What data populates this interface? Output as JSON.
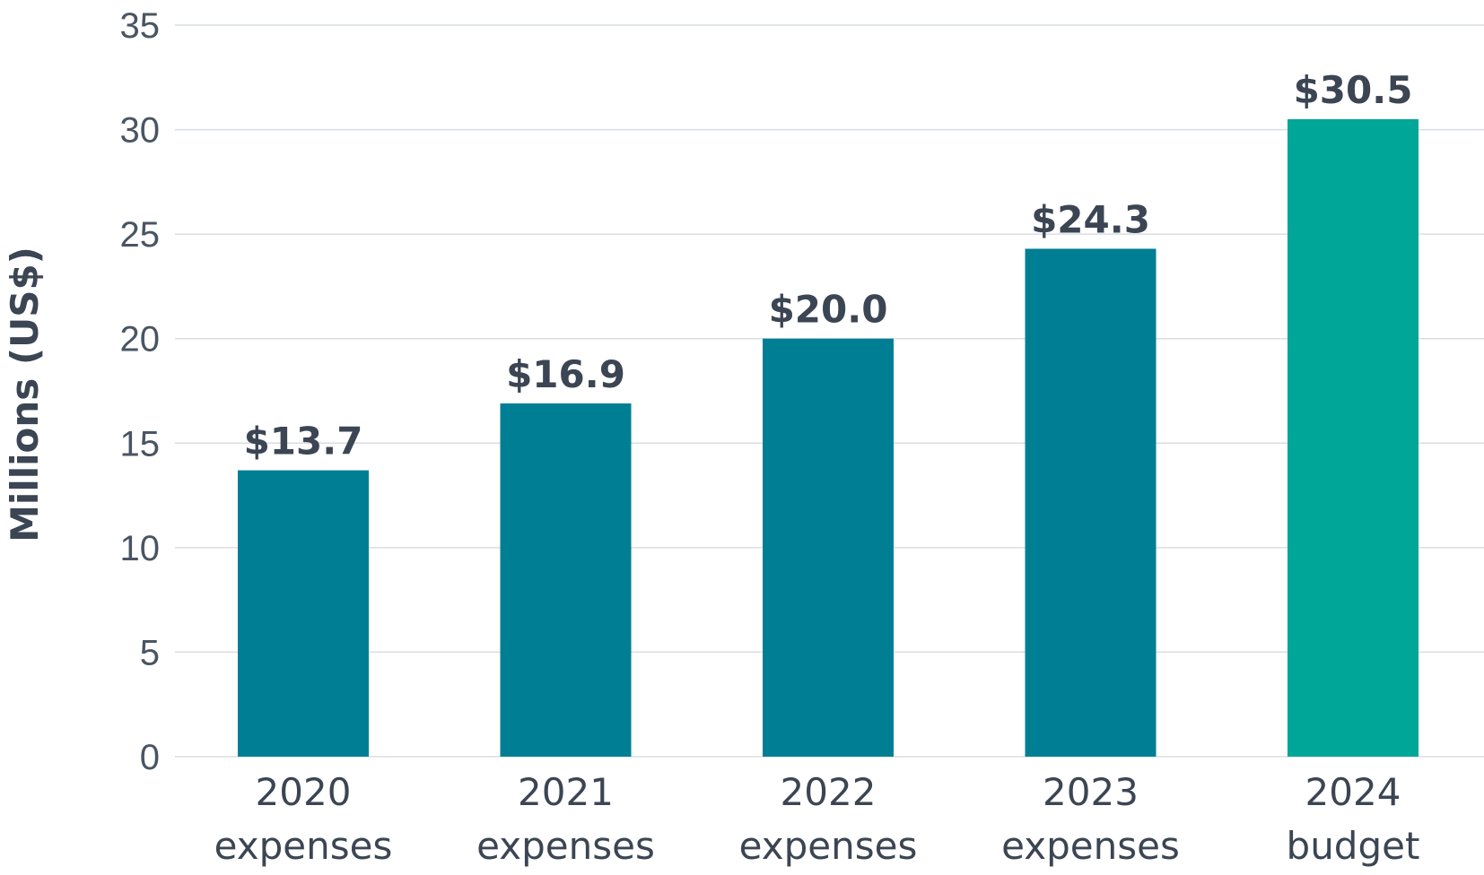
{
  "chart_data": {
    "type": "bar",
    "categories": [
      [
        "2020",
        "expenses"
      ],
      [
        "2021",
        "expenses"
      ],
      [
        "2022",
        "expenses"
      ],
      [
        "2023",
        "expenses"
      ],
      [
        "2024",
        "budget"
      ]
    ],
    "values": [
      13.7,
      16.9,
      20.0,
      24.3,
      30.5
    ],
    "data_labels": [
      "$13.7",
      "$16.9",
      "$20.0",
      "$24.3",
      "$30.5"
    ],
    "ylabel": "Millions (US$)",
    "ylim": [
      0,
      35
    ],
    "yticks": [
      0,
      5,
      10,
      15,
      20,
      25,
      30,
      35
    ],
    "grid": true,
    "colors": {
      "expenses": "#007f94",
      "budget": "#00a697"
    }
  }
}
